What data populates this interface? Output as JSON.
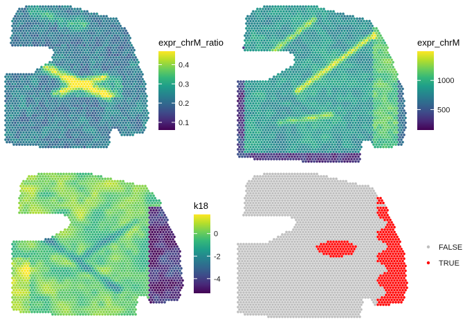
{
  "colors": {
    "viridis": [
      "#440154",
      "#482878",
      "#3e4a89",
      "#31688e",
      "#26828e",
      "#1f9e89",
      "#35b779",
      "#6ece58",
      "#b5de2b",
      "#fde725"
    ],
    "false_color": "#bebebe",
    "true_color": "#ff0000"
  },
  "chart_data": [
    {
      "type": "scatter",
      "plot": "spatial-spot-map",
      "legend_title": "expr_chrM_ratio",
      "scale": "continuous-viridis",
      "range": [
        0.06,
        0.47
      ],
      "ticks": [
        0.1,
        0.2,
        0.3,
        0.4
      ],
      "tick_labels": [
        "0.1",
        "0.2",
        "0.3",
        "0.4"
      ],
      "legend_placement": "right"
    },
    {
      "type": "scatter",
      "plot": "spatial-spot-map",
      "legend_title": "expr_chrM",
      "scale": "continuous-viridis",
      "range": [
        150,
        1500
      ],
      "ticks": [
        500,
        1000
      ],
      "tick_labels": [
        "500",
        "1000"
      ],
      "legend_placement": "right"
    },
    {
      "type": "scatter",
      "plot": "spatial-spot-map",
      "legend_title": "k18",
      "scale": "continuous-viridis",
      "range": [
        -5.3,
        1.7
      ],
      "ticks": [
        -4,
        -2,
        0
      ],
      "tick_labels": [
        "-4",
        "-2",
        "0"
      ],
      "legend_placement": "right"
    },
    {
      "type": "scatter",
      "plot": "spatial-spot-map",
      "legend_title": "",
      "scale": "discrete",
      "categories": [
        "FALSE",
        "TRUE"
      ],
      "category_colors": [
        "#bebebe",
        "#ff0000"
      ],
      "legend_placement": "right"
    }
  ]
}
